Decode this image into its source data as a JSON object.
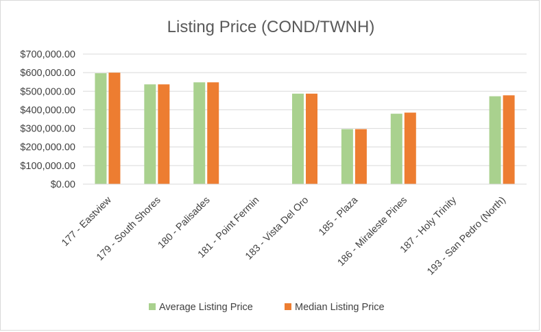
{
  "chart_data": {
    "type": "bar",
    "title": "Listing Price (COND/TWNH)",
    "xlabel": "",
    "ylabel": "",
    "categories": [
      "177 - Eastview",
      "179 - South Shores",
      "180 - Palisades",
      "181 - Point Fermin",
      "183 - Vista Del Oro",
      "185 - Plaza",
      "186 - Miraleste Pines",
      "187 - Holy Trinity",
      "193 - San Pedro (North)"
    ],
    "series": [
      {
        "name": "Average Listing Price",
        "color": "#a9d18e",
        "values": [
          597000,
          537000,
          548000,
          null,
          487000,
          296000,
          379000,
          null,
          473000
        ]
      },
      {
        "name": "Median Listing Price",
        "color": "#ed7d31",
        "values": [
          600000,
          537000,
          548000,
          null,
          487000,
          296000,
          385000,
          null,
          478000
        ]
      }
    ],
    "ylim": [
      0,
      700000
    ],
    "yticks": [
      {
        "value": 0,
        "label": "$0.00"
      },
      {
        "value": 100000,
        "label": "$100,000.00"
      },
      {
        "value": 200000,
        "label": "$200,000.00"
      },
      {
        "value": 300000,
        "label": "$300,000.00"
      },
      {
        "value": 400000,
        "label": "$400,000.00"
      },
      {
        "value": 500000,
        "label": "$500,000.00"
      },
      {
        "value": 600000,
        "label": "$600,000.00"
      },
      {
        "value": 700000,
        "label": "$700,000.00"
      }
    ],
    "grid": true,
    "gridline_color": "#d9d9d9",
    "legend_position": "bottom"
  }
}
